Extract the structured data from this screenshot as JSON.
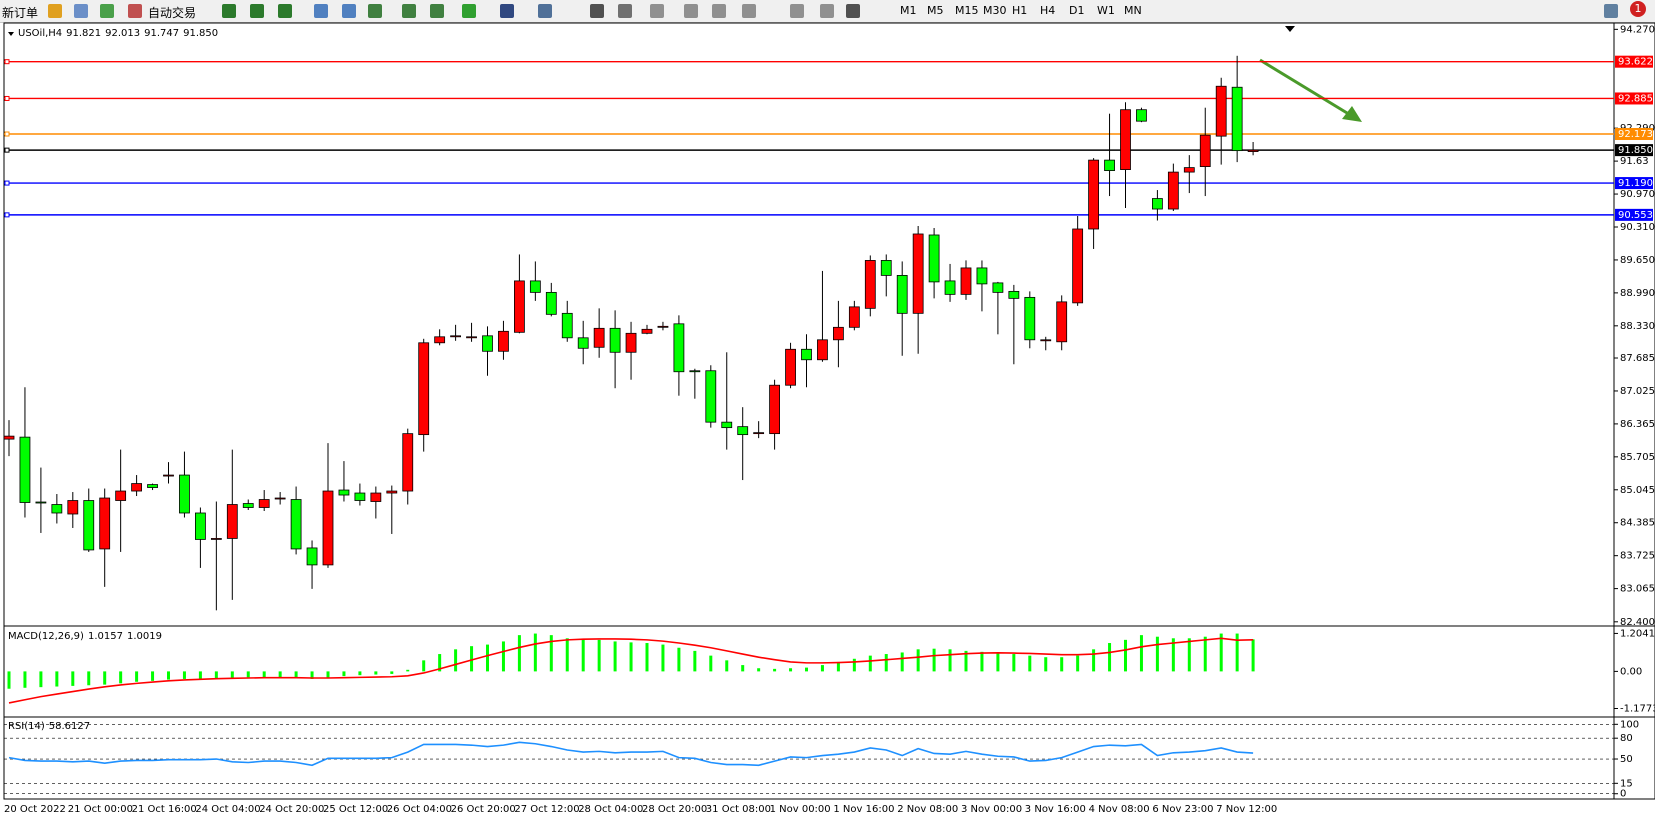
{
  "toolbar": {
    "new_order": "新订单",
    "auto_trading": "自动交易",
    "timeframes": [
      "M1",
      "M5",
      "M15",
      "M30",
      "H1",
      "H4",
      "D1",
      "W1",
      "MN"
    ],
    "badge": "1"
  },
  "chart_data": [
    {
      "type": "candlestick",
      "title": "USOil,H4",
      "categories": [
        "20 Oct 2022",
        null,
        null,
        null,
        "21 Oct 00:00",
        null,
        null,
        null,
        "21 Oct 16:00",
        null,
        null,
        null,
        "24 Oct 04:00",
        null,
        null,
        null,
        "24 Oct 20:00",
        null,
        null,
        null,
        "25 Oct 12:00",
        null,
        null,
        null,
        "26 Oct 04:00",
        null,
        null,
        null,
        "26 Oct 20:00",
        null,
        null,
        null,
        "27 Oct 12:00",
        null,
        null,
        null,
        "28 Oct 04:00",
        null,
        null,
        null,
        "28 Oct 20:00",
        null,
        null,
        null,
        "31 Oct 08:00",
        null,
        null,
        null,
        "1 Nov 00:00",
        null,
        null,
        null,
        "1 Nov 16:00",
        null,
        null,
        null,
        "2 Nov 08:00",
        null,
        null,
        null,
        "3 Nov 00:00",
        null,
        null,
        null,
        "3 Nov 16:00",
        null,
        null,
        null,
        "4 Nov 08:00",
        null,
        null,
        null,
        "6 Nov 23:00",
        null,
        null,
        null,
        "7 Nov 12:00",
        null,
        null
      ],
      "open": [
        86.06,
        86.1,
        84.8,
        84.75,
        84.56,
        84.83,
        83.86,
        84.83,
        85.02,
        85.15,
        85.32,
        85.34,
        84.58,
        84.07,
        84.07,
        84.77,
        84.69,
        84.87,
        84.85,
        83.88,
        83.54,
        85.04,
        84.98,
        84.81,
        84.98,
        85.02,
        86.15,
        87.99,
        88.11,
        88.11,
        88.13,
        87.82,
        88.2,
        89.23,
        89.0,
        88.58,
        88.09,
        87.9,
        88.28,
        87.8,
        88.18,
        88.3,
        88.37,
        87.43,
        87.43,
        86.4,
        86.31,
        86.17,
        86.17,
        87.14,
        87.86,
        87.65,
        88.05,
        88.3,
        88.68,
        89.64,
        89.34,
        88.58,
        90.15,
        89.23,
        88.96,
        89.49,
        89.19,
        89.02,
        88.9,
        88.03,
        88.01,
        88.79,
        90.27,
        91.65,
        91.46,
        92.66,
        90.88,
        90.67,
        91.41,
        91.52,
        92.13,
        93.11,
        91.821
      ],
      "high": [
        86.44,
        87.1,
        85.49,
        84.96,
        85.0,
        85.07,
        85.07,
        85.85,
        85.34,
        85.17,
        85.6,
        85.81,
        84.69,
        84.81,
        85.85,
        84.85,
        85.04,
        85.0,
        85.11,
        84.03,
        85.98,
        85.62,
        85.17,
        85.11,
        85.13,
        86.27,
        88.07,
        88.26,
        88.35,
        88.39,
        88.32,
        88.43,
        89.76,
        89.62,
        89.19,
        88.83,
        88.43,
        88.68,
        88.64,
        88.41,
        88.35,
        88.41,
        88.54,
        87.47,
        87.54,
        87.8,
        86.7,
        86.42,
        87.25,
        87.99,
        88.16,
        89.43,
        88.83,
        88.83,
        89.74,
        89.76,
        89.62,
        90.33,
        90.29,
        89.57,
        89.64,
        89.64,
        89.21,
        89.15,
        89.02,
        88.11,
        88.94,
        90.53,
        91.69,
        92.58,
        92.81,
        92.7,
        91.05,
        91.58,
        91.75,
        92.7,
        93.3,
        93.74,
        92.013
      ],
      "low": [
        85.72,
        84.49,
        84.18,
        84.37,
        84.28,
        83.8,
        83.1,
        83.8,
        84.92,
        85.04,
        85.17,
        84.49,
        83.48,
        82.63,
        82.84,
        84.64,
        84.62,
        84.75,
        83.75,
        83.06,
        83.48,
        84.81,
        84.73,
        84.47,
        84.16,
        84.75,
        85.81,
        87.94,
        88.03,
        88.01,
        87.33,
        87.65,
        88.18,
        88.83,
        88.52,
        88.01,
        87.56,
        87.69,
        87.08,
        87.25,
        88.16,
        88.24,
        86.93,
        86.87,
        86.29,
        85.85,
        85.24,
        86.08,
        85.85,
        87.08,
        87.1,
        87.61,
        87.5,
        88.24,
        88.52,
        88.92,
        87.73,
        87.77,
        88.88,
        88.81,
        88.85,
        88.62,
        88.16,
        87.56,
        87.88,
        87.84,
        87.84,
        88.73,
        89.87,
        90.93,
        90.69,
        92.41,
        90.44,
        90.63,
        90.99,
        90.93,
        91.56,
        91.61,
        91.747
      ],
      "close": [
        86.12,
        84.79,
        84.78,
        84.58,
        84.83,
        83.84,
        84.88,
        85.02,
        85.17,
        85.09,
        85.34,
        84.58,
        84.05,
        84.07,
        84.75,
        84.69,
        84.85,
        84.88,
        83.86,
        83.54,
        85.02,
        84.94,
        84.83,
        84.98,
        85.02,
        86.17,
        87.99,
        88.11,
        88.13,
        88.11,
        87.82,
        88.22,
        89.23,
        89.0,
        88.56,
        88.09,
        87.88,
        88.28,
        87.8,
        88.18,
        88.26,
        88.32,
        87.41,
        87.41,
        86.4,
        86.29,
        86.15,
        86.19,
        87.14,
        87.86,
        87.65,
        88.05,
        88.3,
        88.71,
        89.64,
        89.34,
        88.58,
        90.17,
        89.21,
        88.96,
        89.49,
        89.17,
        89.0,
        88.88,
        88.05,
        88.05,
        88.81,
        90.27,
        91.65,
        91.44,
        92.66,
        92.43,
        90.67,
        91.41,
        91.5,
        92.15,
        93.13,
        91.84,
        91.85
      ],
      "up_color": "#ff0000",
      "down_color": "#00ff00",
      "ylim": [
        82.336,
        94.397
      ],
      "yticks": [
        {
          "value": 94.27,
          "label": "94.270"
        },
        {
          "value": 92.29,
          "label": "92.290"
        },
        91.63,
        {
          "value": 90.97,
          "label": "90.970"
        },
        {
          "value": 90.31,
          "label": "90.310"
        },
        {
          "value": 89.65,
          "label": "89.650"
        },
        {
          "value": 88.99,
          "label": "88.990"
        },
        {
          "value": 88.33,
          "label": "88.330"
        },
        87.685,
        87.025,
        86.365,
        85.705,
        85.045,
        84.385,
        83.725,
        83.065,
        {
          "value": 82.4,
          "label": "82.400"
        }
      ],
      "hlines": [
        {
          "value": 93.622,
          "color": "#ff0000"
        },
        {
          "value": 92.885,
          "color": "#ff0000"
        },
        {
          "value": 92.173,
          "color": "#ff8c00"
        },
        {
          "value": 91.85,
          "label": "91.850",
          "color": "#000000"
        },
        {
          "value": 91.19,
          "label": "91.190",
          "color": "#0000ff"
        },
        {
          "value": 90.553,
          "color": "#0000ff"
        }
      ]
    },
    {
      "type": "macd",
      "title": "MACD(12,26,9)",
      "values": [
        -0.55,
        -0.52,
        -0.5,
        -0.48,
        -0.46,
        -0.44,
        -0.42,
        -0.38,
        -0.33,
        -0.3,
        -0.26,
        -0.24,
        -0.24,
        -0.22,
        -0.2,
        -0.19,
        -0.18,
        -0.2,
        -0.22,
        -0.24,
        -0.2,
        -0.15,
        -0.12,
        -0.1,
        -0.08,
        0.05,
        0.35,
        0.55,
        0.7,
        0.8,
        0.85,
        0.95,
        1.15,
        1.2,
        1.15,
        1.05,
        1.0,
        1.0,
        0.95,
        0.92,
        0.9,
        0.85,
        0.75,
        0.65,
        0.5,
        0.35,
        0.2,
        0.1,
        0.08,
        0.1,
        0.12,
        0.2,
        0.3,
        0.4,
        0.5,
        0.55,
        0.6,
        0.7,
        0.72,
        0.7,
        0.65,
        0.62,
        0.6,
        0.55,
        0.5,
        0.45,
        0.45,
        0.5,
        0.7,
        0.9,
        1.0,
        1.15,
        1.1,
        1.05,
        1.05,
        1.1,
        1.2,
        1.2,
        1.0157
      ],
      "color": "#00ff00",
      "signal": [
        -1.0,
        -0.9,
        -0.8,
        -0.72,
        -0.64,
        -0.56,
        -0.49,
        -0.43,
        -0.38,
        -0.34,
        -0.3,
        -0.27,
        -0.25,
        -0.23,
        -0.22,
        -0.21,
        -0.2,
        -0.2,
        -0.2,
        -0.21,
        -0.21,
        -0.2,
        -0.19,
        -0.18,
        -0.17,
        -0.14,
        -0.05,
        0.08,
        0.22,
        0.36,
        0.5,
        0.63,
        0.76,
        0.87,
        0.95,
        1.0,
        1.02,
        1.03,
        1.03,
        1.02,
        1.0,
        0.96,
        0.9,
        0.83,
        0.75,
        0.65,
        0.55,
        0.45,
        0.37,
        0.3,
        0.27,
        0.27,
        0.28,
        0.3,
        0.33,
        0.37,
        0.41,
        0.45,
        0.5,
        0.53,
        0.56,
        0.58,
        0.59,
        0.58,
        0.57,
        0.55,
        0.53,
        0.53,
        0.55,
        0.6,
        0.68,
        0.78,
        0.85,
        0.9,
        0.95,
        1.0,
        1.05,
        0.99,
        1.0019
      ],
      "signal_color": "#ff0000",
      "ylim": [
        -1.415,
        1.408
      ],
      "yticks": [
        1.2041,
        {
          "value": 0,
          "label": "0.00"
        },
        -1.1773
      ]
    },
    {
      "type": "line",
      "title": "RSI(14)",
      "values": [
        52,
        48,
        47,
        47,
        46,
        47,
        44,
        47,
        48,
        48,
        49,
        49,
        49,
        50,
        46,
        45,
        47,
        47,
        45,
        41,
        51,
        51,
        51,
        51,
        52,
        60,
        71,
        71,
        71,
        70,
        68,
        70,
        74,
        72,
        68,
        63,
        60,
        61,
        59,
        60,
        60,
        61,
        52,
        51,
        45,
        42,
        42,
        41,
        47,
        53,
        52,
        55,
        57,
        60,
        66,
        63,
        55,
        65,
        58,
        57,
        61,
        57,
        54,
        53,
        47,
        48,
        52,
        60,
        68,
        70,
        69,
        71,
        55,
        59,
        60,
        62,
        66,
        60,
        58.6127
      ],
      "color": "#1e90ff",
      "ylim": [
        -7.6,
        109.1
      ],
      "yticks": [
        100,
        80,
        50,
        15,
        0
      ],
      "grid": "dashed"
    }
  ]
}
